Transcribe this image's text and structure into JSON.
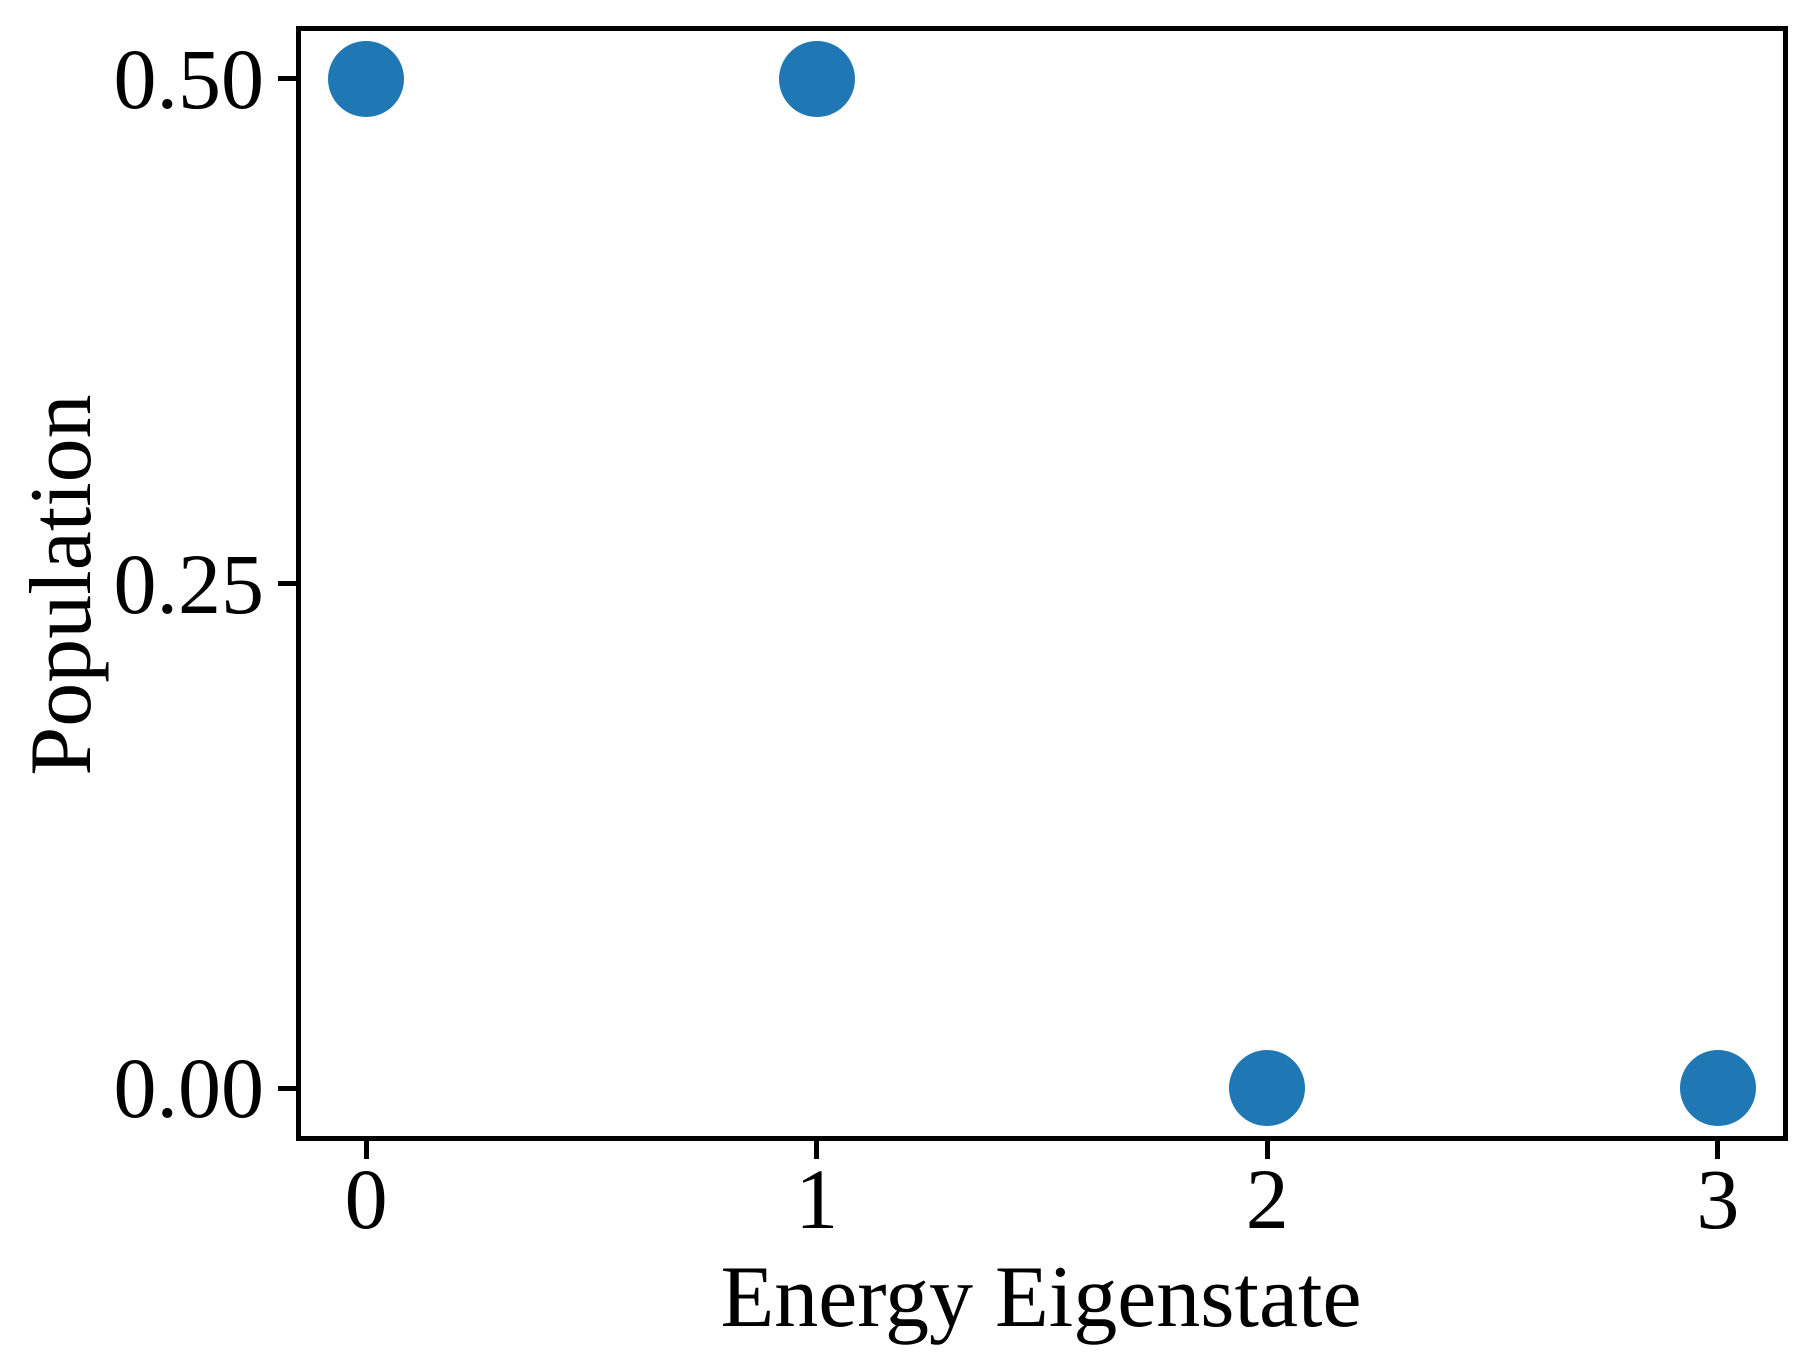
{
  "figure": {
    "background": "#ffffff",
    "axes_color": "#000000"
  },
  "chart_data": {
    "type": "scatter",
    "xlabel": "Energy Eigenstate",
    "ylabel": "Population",
    "x": [
      0,
      1,
      2,
      3
    ],
    "y": [
      0.5,
      0.5,
      0.0,
      0.0
    ],
    "xlim": [
      -0.15,
      3.15
    ],
    "ylim": [
      -0.025,
      0.525
    ],
    "xticks": {
      "values": [
        0,
        1,
        2,
        3
      ],
      "labels": [
        "0",
        "1",
        "2",
        "3"
      ]
    },
    "yticks": {
      "values": [
        0,
        0.25,
        0.5
      ],
      "labels": [
        "0.00",
        "0.25",
        "0.50"
      ]
    },
    "marker": {
      "shape": "circle",
      "color": "#1f77b4",
      "radius_px": 38
    },
    "grid": false,
    "legend": "none"
  }
}
